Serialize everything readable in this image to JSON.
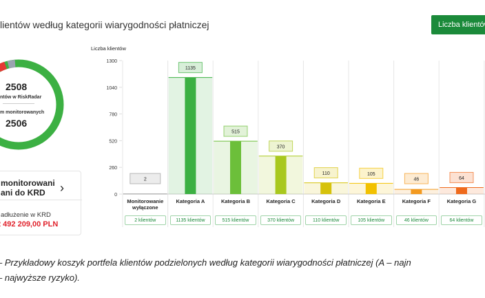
{
  "header": {
    "title": "lientów według kategorii wiarygodności płatniczej",
    "button": "Liczba klientów"
  },
  "summary": {
    "total": "2508",
    "total_label": "ntów w RiskRadar",
    "monitored_label": "m monitorowanych",
    "monitored": "2506",
    "card_line1": "monitorowani",
    "card_line2": "ani do KRD",
    "debt_label": "adłużenie w KRD",
    "debt": "2 492 209,00 PLN"
  },
  "chart_data": {
    "type": "bar",
    "y_label": "Liczba klientów",
    "categories": [
      "Monitorowanie wyłączone",
      "Kategoria A",
      "Kategoria B",
      "Kategoria C",
      "Kategoria D",
      "Kategoria E",
      "Kategoria F",
      "Kategoria G"
    ],
    "values": [
      2,
      1135,
      515,
      370,
      110,
      105,
      46,
      64
    ],
    "colors": [
      "#9e9e9e",
      "#3cb043",
      "#6cbf3a",
      "#a9c81e",
      "#d6c20c",
      "#f2c100",
      "#f39a20",
      "#ef6a1c"
    ],
    "count_labels": [
      "2 klientów",
      "1135 klientów",
      "515 klientów",
      "370 klientów",
      "110 klientów",
      "105 klientów",
      "46 klientów",
      "64 klientów"
    ],
    "ylim": [
      0,
      1300
    ],
    "yticks": [
      0,
      260,
      520,
      780,
      1040,
      1300
    ]
  },
  "caption": {
    "line1": "– Przykładowy koszyk portfela klientów podzielonych według kategorii wiarygodności płatniczej (A – najn",
    "line2": "– najwyższe ryzyko)."
  }
}
